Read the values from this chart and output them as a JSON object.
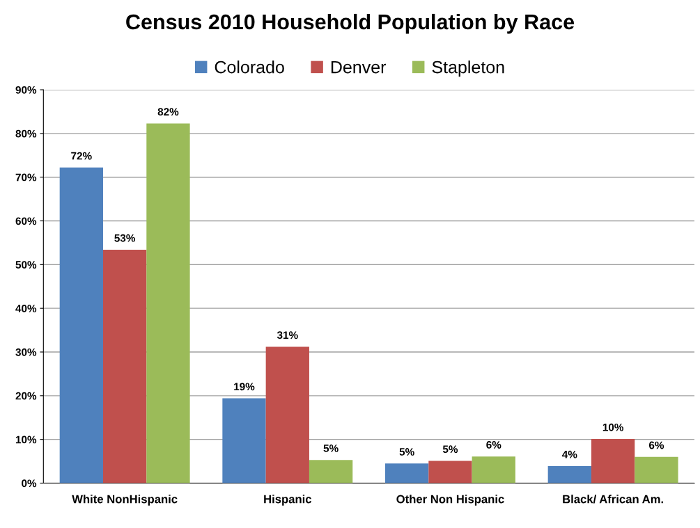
{
  "chart_data": {
    "type": "bar",
    "title": "Census 2010 Household Population by Race",
    "categories": [
      "White NonHispanic",
      "Hispanic",
      "Other Non Hispanic",
      "Black/ African Am."
    ],
    "series": [
      {
        "name": "Colorado",
        "color": "#4f81bd",
        "values": [
          72.2,
          19.4,
          4.5,
          3.9
        ],
        "value_labels": [
          "72%",
          "19%",
          "5%",
          "4%"
        ]
      },
      {
        "name": "Denver",
        "color": "#c0504d",
        "values": [
          53.4,
          31.2,
          5.1,
          10.1
        ],
        "value_labels": [
          "53%",
          "31%",
          "5%",
          "10%"
        ]
      },
      {
        "name": "Stapleton",
        "color": "#9bbb59",
        "values": [
          82.3,
          5.3,
          6.1,
          6.0
        ],
        "value_labels": [
          "82%",
          "5%",
          "6%",
          "6%"
        ]
      }
    ],
    "ylim": [
      0,
      90
    ],
    "yticks": [
      {
        "value": 0,
        "label": "0%"
      },
      {
        "value": 10,
        "label": "10%"
      },
      {
        "value": 20,
        "label": "20%"
      },
      {
        "value": 30,
        "label": "30%"
      },
      {
        "value": 40,
        "label": "40%"
      },
      {
        "value": 50,
        "label": "50%"
      },
      {
        "value": 60,
        "label": "60%"
      },
      {
        "value": 70,
        "label": "70%"
      },
      {
        "value": 80,
        "label": "80%"
      },
      {
        "value": 90,
        "label": "90%"
      }
    ],
    "grid": "y",
    "legend": "top"
  }
}
